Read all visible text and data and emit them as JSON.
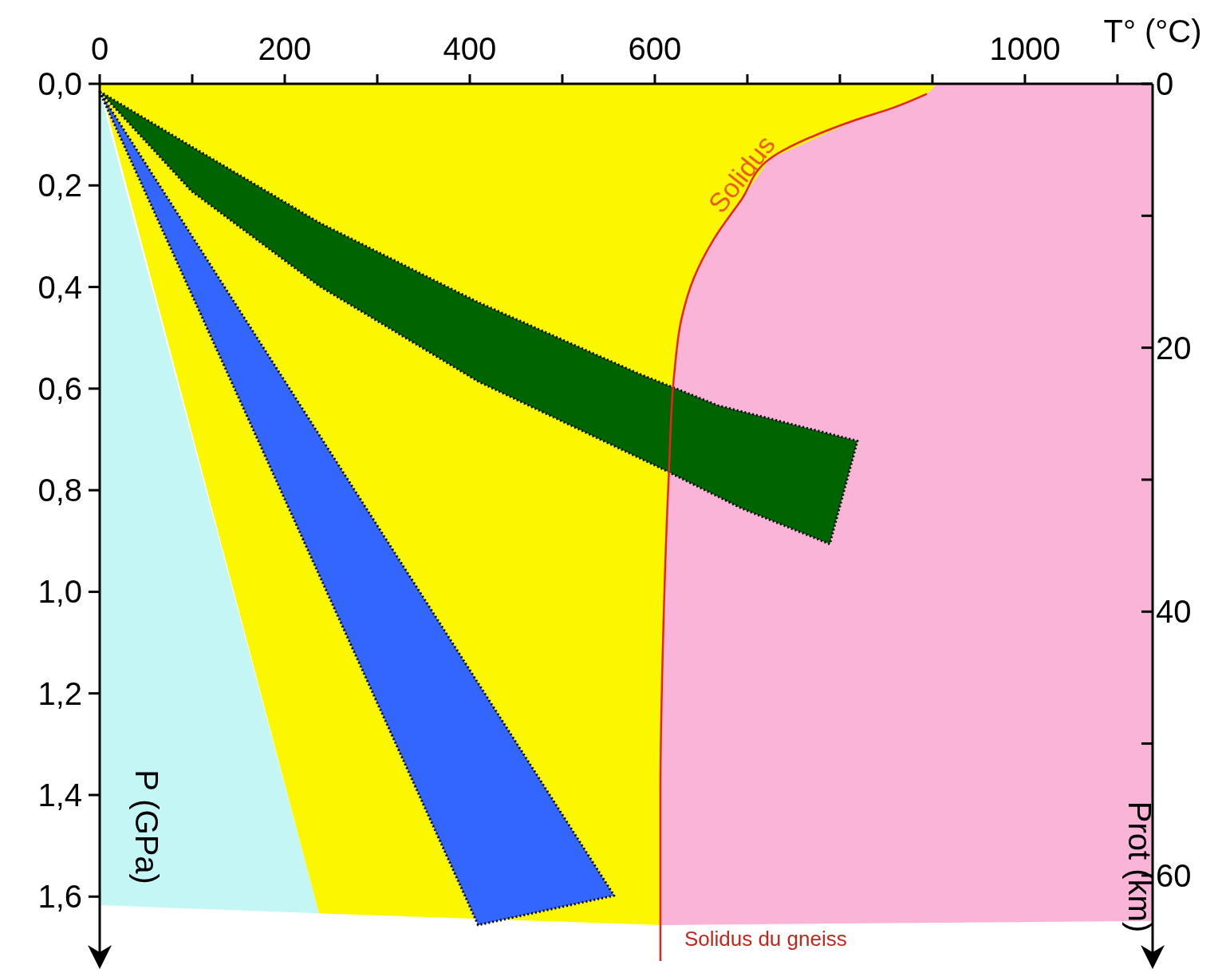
{
  "chart_data": {
    "type": "area",
    "xlabel": "T° (°C)",
    "ylabel": "P (GPa)",
    "y2label": "Prot (km)",
    "xlim": [
      0,
      1138
    ],
    "xticks": [
      0,
      {
        "value": 100,
        "label": null
      },
      200,
      {
        "value": 300,
        "label": null
      },
      400,
      {
        "value": 500,
        "label": null
      },
      600,
      {
        "value": 700,
        "label": null
      },
      {
        "value": 800,
        "label": null
      },
      {
        "value": 900,
        "label": null
      },
      1000,
      {
        "value": 1100,
        "label": null
      }
    ],
    "ylim": [
      1.73,
      0
    ],
    "yticks": [
      {
        "value": 0,
        "label": "0,0"
      },
      {
        "value": 0.2,
        "label": "0,2"
      },
      {
        "value": 0.4,
        "label": "0,4"
      },
      {
        "value": 0.6,
        "label": "0,6"
      },
      {
        "value": 0.8,
        "label": "0,8"
      },
      {
        "value": 1.0,
        "label": "1,0"
      },
      {
        "value": 1.2,
        "label": "1,2"
      },
      {
        "value": 1.4,
        "label": "1,4"
      },
      {
        "value": 1.6,
        "label": "1,6"
      }
    ],
    "y2lim": [
      66.6,
      0
    ],
    "y2ticks": [
      0,
      {
        "value": 10,
        "label": null
      },
      20,
      {
        "value": 30,
        "label": null
      },
      40,
      {
        "value": 50,
        "label": null
      },
      60
    ],
    "grid": false,
    "legend": false,
    "series": [
      {
        "color": "#c4f6f6",
        "x": [
          0,
          237,
          0
        ],
        "values": [
          0.016,
          1.633,
          1.617
        ]
      },
      {
        "color": "#f9b4d8",
        "x": [
          905,
          1138,
          1138,
          607,
          606,
          609,
          615,
          621,
          629,
          642,
          664,
          694,
          724,
          819,
          858,
          894
        ],
        "values": [
          0,
          0,
          1.648,
          1.656,
          1.398,
          1.086,
          0.773,
          0.57,
          0.461,
          0.383,
          0.305,
          0.227,
          0.148,
          0.07,
          0.047,
          0.02
        ]
      },
      {
        "color": "#fbf700",
        "x": [
          0,
          905,
          894,
          858,
          819,
          724,
          694,
          664,
          642,
          629,
          621,
          615,
          609,
          606,
          607,
          237
        ],
        "values": [
          0,
          0,
          0.02,
          0.047,
          0.07,
          0.148,
          0.227,
          0.305,
          0.383,
          0.461,
          0.57,
          0.773,
          1.086,
          1.398,
          1.656,
          1.633
        ]
      },
      {
        "color": "#3366ff",
        "line_style": "dotted",
        "x": [
          0,
          556,
          409
        ],
        "values": [
          0.016,
          1.598,
          1.656
        ]
      },
      {
        "color": "#006400",
        "line_style": "dotted",
        "x": [
          0,
          108,
          237,
          409,
          582,
          668,
          819,
          789,
          694,
          608,
          409,
          237,
          99
        ],
        "values": [
          0.015,
          0.133,
          0.273,
          0.43,
          0.57,
          0.633,
          0.703,
          0.906,
          0.836,
          0.758,
          0.586,
          0.398,
          0.211
        ]
      },
      {
        "type": "line",
        "name": "Solidus",
        "color": "#e8251c",
        "x": [
          894,
          858,
          819,
          724,
          694,
          664,
          642,
          629,
          621,
          615,
          609,
          606,
          606
        ],
        "values": [
          0.02,
          0.047,
          0.07,
          0.148,
          0.227,
          0.305,
          0.383,
          0.461,
          0.57,
          0.773,
          1.086,
          1.398,
          1.727
        ]
      }
    ],
    "annotations": [
      {
        "text": "Solidus du gneiss",
        "x": 606,
        "y": 1.7
      }
    ]
  }
}
